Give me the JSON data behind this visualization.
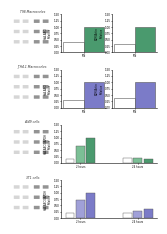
{
  "panel_a_title": "T98 Macrosceles",
  "panel_b_title": "JTH4.1 Macrosceles",
  "panel_c_title": "A549 cells",
  "panel_d_title": "3T1 cells",
  "green_color": "#4a9a6e",
  "green_light": "#7bbf95",
  "purple_color": "#7b7bc8",
  "purple_light": "#a0a0d8",
  "purple_dark": "#5a5aaa",
  "white_bar": "#ffffff",
  "bar_edge": "#555555",
  "panel_a_bar1": [
    0.4,
    1.0
  ],
  "panel_a_bar2": [
    0.35,
    1.0
  ],
  "panel_b_bar1": [
    0.3,
    1.0
  ],
  "panel_b_bar2": [
    0.4,
    1.0
  ],
  "panel_c_bar1": [
    0.15,
    0.65,
    1.0,
    0.2,
    0.18,
    0.16
  ],
  "panel_d_bar1": [
    0.2,
    0.7,
    1.0,
    0.22,
    0.28,
    0.35
  ],
  "ylim_ab": [
    0,
    1.5
  ],
  "ylim_cd": [
    0,
    1.5
  ]
}
